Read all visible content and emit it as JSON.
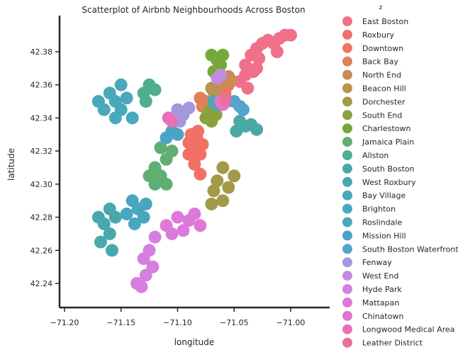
{
  "chart_data": {
    "type": "scatter",
    "title": "Scatterplot of Airbnb Neighbourhoods Across Boston",
    "xlabel": "longitude",
    "ylabel": "latitude",
    "xlim": [
      -71.2,
      -70.98
    ],
    "ylim": [
      42.23,
      42.395
    ],
    "xticks": [
      -71.2,
      -71.15,
      -71.1,
      -71.05,
      -71.0
    ],
    "xtick_labels": [
      "−71.20",
      "−71.15",
      "−71.10",
      "−71.05",
      "−71.00"
    ],
    "yticks": [
      42.24,
      42.26,
      42.28,
      42.3,
      42.32,
      42.34,
      42.36,
      42.38
    ],
    "ytick_labels": [
      "42.24",
      "42.26",
      "42.28",
      "42.30",
      "42.32",
      "42.34",
      "42.36",
      "42.38"
    ],
    "grid": false,
    "legend": {
      "title": "z",
      "placement": "right-outside",
      "entries": [
        {
          "name": "East Boston",
          "color": "#f0708a"
        },
        {
          "name": "Roxbury",
          "color": "#f27066"
        },
        {
          "name": "Downtown",
          "color": "#ee7462"
        },
        {
          "name": "Back Bay",
          "color": "#e0805a"
        },
        {
          "name": "North End",
          "color": "#cb8b55"
        },
        {
          "name": "Beacon Hill",
          "color": "#b8944f"
        },
        {
          "name": "Dorchester",
          "color": "#a29a47"
        },
        {
          "name": "South End",
          "color": "#8aa23d"
        },
        {
          "name": "Charlestown",
          "color": "#77a83a"
        },
        {
          "name": "Jamaica Plain",
          "color": "#5fae74"
        },
        {
          "name": "Allston",
          "color": "#4fae90"
        },
        {
          "name": "South Boston",
          "color": "#4aaaa3"
        },
        {
          "name": "West Roxbury",
          "color": "#49a8ae"
        },
        {
          "name": "Bay Village",
          "color": "#4aa7b5"
        },
        {
          "name": "Brighton",
          "color": "#49a8bb"
        },
        {
          "name": "Roslindale",
          "color": "#4aa6bf"
        },
        {
          "name": "Mission Hill",
          "color": "#4ba4c6"
        },
        {
          "name": "South Boston Waterfront",
          "color": "#55a4cc"
        },
        {
          "name": "Fenway",
          "color": "#a397dd"
        },
        {
          "name": "West End",
          "color": "#c28de0"
        },
        {
          "name": "Hyde Park",
          "color": "#d57fe0"
        },
        {
          "name": "Mattapan",
          "color": "#df78db"
        },
        {
          "name": "Chinatown",
          "color": "#e573cf"
        },
        {
          "name": "Longwood Medical Area",
          "color": "#e870b8"
        },
        {
          "name": "Leather District",
          "color": "#ea6f9e"
        }
      ]
    },
    "series": [
      {
        "name": "East Boston",
        "points": [
          [
            -71.04,
            42.372
          ],
          [
            -71.035,
            42.378
          ],
          [
            -71.03,
            42.382
          ],
          [
            -71.025,
            42.385
          ],
          [
            -71.02,
            42.387
          ],
          [
            -71.015,
            42.385
          ],
          [
            -71.01,
            42.388
          ],
          [
            -71.005,
            42.39
          ],
          [
            -71.0,
            42.39
          ],
          [
            -71.04,
            42.366
          ],
          [
            -71.045,
            42.362
          ],
          [
            -71.038,
            42.358
          ],
          [
            -71.033,
            42.368
          ],
          [
            -71.028,
            42.376
          ],
          [
            -71.012,
            42.38
          ],
          [
            -71.03,
            42.37
          ]
        ]
      },
      {
        "name": "Roxbury",
        "points": [
          [
            -71.09,
            42.325
          ],
          [
            -71.085,
            42.322
          ],
          [
            -71.08,
            42.318
          ],
          [
            -71.085,
            42.312
          ],
          [
            -71.08,
            42.306
          ],
          [
            -71.088,
            42.33
          ],
          [
            -71.083,
            42.328
          ],
          [
            -71.078,
            42.324
          ],
          [
            -71.09,
            42.318
          ],
          [
            -71.082,
            42.332
          ]
        ]
      },
      {
        "name": "Downtown",
        "points": [
          [
            -71.06,
            42.358
          ],
          [
            -71.058,
            42.355
          ],
          [
            -71.062,
            42.352
          ],
          [
            -71.056,
            42.35
          ],
          [
            -71.055,
            42.36
          ]
        ]
      },
      {
        "name": "Back Bay",
        "points": [
          [
            -71.08,
            42.352
          ],
          [
            -71.075,
            42.35
          ],
          [
            -71.072,
            42.348
          ],
          [
            -71.078,
            42.347
          ]
        ]
      },
      {
        "name": "North End",
        "points": [
          [
            -71.055,
            42.365
          ],
          [
            -71.053,
            42.363
          ],
          [
            -71.057,
            42.362
          ]
        ]
      },
      {
        "name": "Beacon Hill",
        "points": [
          [
            -71.07,
            42.358
          ],
          [
            -71.068,
            42.356
          ],
          [
            -71.066,
            42.359
          ]
        ]
      },
      {
        "name": "Dorchester",
        "points": [
          [
            -71.06,
            42.31
          ],
          [
            -71.065,
            42.302
          ],
          [
            -71.055,
            42.298
          ],
          [
            -71.06,
            42.29
          ],
          [
            -71.05,
            42.305
          ],
          [
            -71.068,
            42.296
          ],
          [
            -71.07,
            42.288
          ]
        ]
      },
      {
        "name": "South End",
        "points": [
          [
            -71.075,
            42.34
          ],
          [
            -71.07,
            42.338
          ],
          [
            -71.072,
            42.344
          ],
          [
            -71.066,
            42.342
          ]
        ]
      },
      {
        "name": "Charlestown",
        "points": [
          [
            -71.07,
            42.378
          ],
          [
            -71.065,
            42.375
          ],
          [
            -71.062,
            42.372
          ],
          [
            -71.068,
            42.368
          ],
          [
            -71.06,
            42.378
          ]
        ]
      },
      {
        "name": "Jamaica Plain",
        "points": [
          [
            -71.12,
            42.31
          ],
          [
            -71.115,
            42.305
          ],
          [
            -71.11,
            42.315
          ],
          [
            -71.105,
            42.32
          ],
          [
            -71.11,
            42.3
          ],
          [
            -71.12,
            42.3
          ],
          [
            -71.115,
            42.322
          ],
          [
            -71.125,
            42.305
          ]
        ]
      },
      {
        "name": "Allston",
        "points": [
          [
            -71.13,
            42.355
          ],
          [
            -71.125,
            42.36
          ],
          [
            -71.128,
            42.35
          ],
          [
            -71.12,
            42.357
          ]
        ]
      },
      {
        "name": "South Boston",
        "points": [
          [
            -71.045,
            42.338
          ],
          [
            -71.04,
            42.335
          ],
          [
            -71.035,
            42.336
          ],
          [
            -71.03,
            42.333
          ],
          [
            -71.048,
            42.332
          ]
        ]
      },
      {
        "name": "West Roxbury",
        "points": [
          [
            -71.16,
            42.285
          ],
          [
            -71.155,
            42.28
          ],
          [
            -71.165,
            42.276
          ],
          [
            -71.16,
            42.27
          ],
          [
            -71.168,
            42.265
          ],
          [
            -71.17,
            42.28
          ],
          [
            -71.158,
            42.26
          ]
        ]
      },
      {
        "name": "Bay Village",
        "points": [
          [
            -71.068,
            42.35
          ],
          [
            -71.066,
            42.348
          ]
        ]
      },
      {
        "name": "Brighton",
        "points": [
          [
            -71.16,
            42.355
          ],
          [
            -71.155,
            42.35
          ],
          [
            -71.15,
            42.345
          ],
          [
            -71.155,
            42.34
          ],
          [
            -71.165,
            42.345
          ],
          [
            -71.145,
            42.352
          ],
          [
            -71.15,
            42.36
          ],
          [
            -71.14,
            42.34
          ],
          [
            -71.17,
            42.35
          ]
        ]
      },
      {
        "name": "Roslindale",
        "points": [
          [
            -71.14,
            42.29
          ],
          [
            -71.135,
            42.285
          ],
          [
            -71.13,
            42.28
          ],
          [
            -71.138,
            42.276
          ],
          [
            -71.145,
            42.282
          ],
          [
            -71.128,
            42.288
          ]
        ]
      },
      {
        "name": "Mission Hill",
        "points": [
          [
            -71.105,
            42.332
          ],
          [
            -71.1,
            42.33
          ],
          [
            -71.11,
            42.328
          ]
        ]
      },
      {
        "name": "South Boston Waterfront",
        "points": [
          [
            -71.05,
            42.35
          ],
          [
            -71.045,
            42.347
          ],
          [
            -71.042,
            42.345
          ]
        ]
      },
      {
        "name": "Fenway",
        "points": [
          [
            -71.1,
            42.345
          ],
          [
            -71.095,
            42.342
          ],
          [
            -71.09,
            42.346
          ],
          [
            -71.098,
            42.338
          ]
        ]
      },
      {
        "name": "West End",
        "points": [
          [
            -71.065,
            42.364
          ],
          [
            -71.062,
            42.366
          ]
        ]
      },
      {
        "name": "Hyde Park",
        "points": [
          [
            -71.12,
            42.268
          ],
          [
            -71.125,
            42.26
          ],
          [
            -71.13,
            42.255
          ],
          [
            -71.128,
            42.245
          ],
          [
            -71.132,
            42.238
          ],
          [
            -71.136,
            42.24
          ],
          [
            -71.122,
            42.25
          ]
        ]
      },
      {
        "name": "Mattapan",
        "points": [
          [
            -71.1,
            42.28
          ],
          [
            -71.09,
            42.278
          ],
          [
            -71.08,
            42.275
          ],
          [
            -71.095,
            42.272
          ],
          [
            -71.105,
            42.27
          ],
          [
            -71.11,
            42.275
          ],
          [
            -71.085,
            42.282
          ]
        ]
      },
      {
        "name": "Chinatown",
        "points": [
          [
            -71.062,
            42.35
          ],
          [
            -71.06,
            42.348
          ]
        ]
      },
      {
        "name": "Longwood Medical Area",
        "points": [
          [
            -71.105,
            42.338
          ],
          [
            -71.108,
            42.34
          ]
        ]
      },
      {
        "name": "Leather District",
        "points": [
          [
            -71.058,
            42.351
          ]
        ]
      }
    ]
  }
}
